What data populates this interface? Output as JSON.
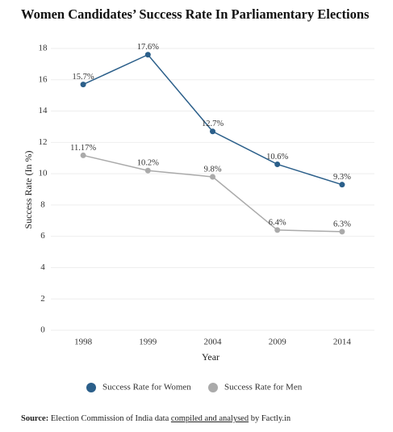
{
  "chart_data": {
    "type": "line",
    "title": "Women Candidates’ Success Rate In Parliamentary Elections",
    "y_label": "Success Rate (In %)",
    "x_label": "Year",
    "categories": [
      "1998",
      "1999",
      "2004",
      "2009",
      "2014"
    ],
    "series": [
      {
        "name": "Success Rate for Women",
        "color": "#2b5f8a",
        "values": [
          15.7,
          17.6,
          12.7,
          10.6,
          9.3
        ],
        "value_labels": [
          "15.7%",
          "17.6%",
          "12.7%",
          "10.6%",
          "9.3%"
        ]
      },
      {
        "name": "Success Rate for Men",
        "color": "#aaaaaa",
        "values": [
          11.17,
          10.2,
          9.8,
          6.4,
          6.3
        ],
        "value_labels": [
          "11.17%",
          "10.2%",
          "9.8%",
          "6.4%",
          "6.3%"
        ]
      }
    ],
    "ylim": [
      0,
      18
    ],
    "yticks": [
      0,
      2,
      4,
      6,
      8,
      10,
      12,
      14,
      16,
      18
    ],
    "grid": true
  },
  "source": {
    "label": "Source:",
    "text": "Election Commission of India data",
    "link": "compiled and analysed",
    "suffix": "by Factly.in"
  }
}
